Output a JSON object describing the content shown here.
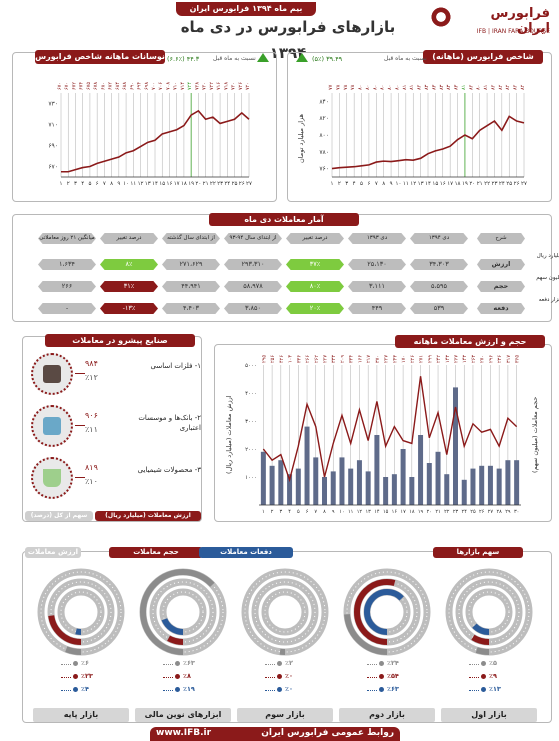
{
  "header": {
    "badge": "بیم ماه ۱۳۹۴ فرابورس ایران",
    "title": "بازارهای فرابورس در دی ماه ۱۳۹۴",
    "logo_fa": "فرابورس ایران",
    "logo_en": "IFB | IRAN FARA BOURSE"
  },
  "index_chart": {
    "title": "شاخص فرابورس (ماهانه)",
    "change_label": "نسبت به ماه قبل",
    "change_value": "۳۹.۴۹ (۵٪)",
    "ylabel": "هزار میلیارد تومان",
    "tick_labels": [
      "۷۶۰",
      "۷۸۰",
      "۸۰۰",
      "۸۲۰",
      "۸۴۰"
    ],
    "ylim": [
      7600,
      8500
    ],
    "top_labels": [
      "۷۷",
      "۷۸",
      "۷۸",
      "۷۸",
      "۸۰",
      "۸۰",
      "۸۰",
      "۸۰",
      "۸۰",
      "۸۰",
      "۸۱",
      "۸۱",
      "۸۲",
      "۸۳",
      "۸۳",
      "۸۳",
      "۸۳",
      "۸۳",
      "۸۱",
      "۸۲",
      "۸۰",
      "۸۱",
      "۸۲",
      "۸۲",
      "۸۲",
      "۸۲",
      "۸۲"
    ],
    "x_labels": [
      "۱",
      "۲",
      "۳",
      "۴",
      "۵",
      "۶",
      "۷",
      "۸",
      "۹",
      "۱۰",
      "۱۱",
      "۱۲",
      "۱۳",
      "۱۴",
      "۱۵",
      "۱۶",
      "۱۷",
      "۱۸",
      "۱۹",
      "۲۰",
      "۲۱",
      "۲۲",
      "۲۳",
      "۲۴",
      "۲۵",
      "۲۶",
      "۲۷"
    ],
    "values": [
      7690,
      7700,
      7705,
      7710,
      7720,
      7730,
      7760,
      7770,
      7765,
      7775,
      7785,
      7780,
      7800,
      7850,
      7880,
      7900,
      7930,
      8000,
      8050,
      8010,
      8100,
      8150,
      8200,
      8100,
      8250,
      8200,
      8180
    ]
  },
  "cap_chart": {
    "title": "نوسانات ماهانه شاخص فرابورس",
    "change_label": "نسبت به ماه قبل",
    "change_value": "۴۴.۳ (۶.۶٪)",
    "ylabel": "",
    "tick_labels": [
      "۶۷۰",
      "۶۹۰",
      "۷۱۰",
      "۷۳۰"
    ],
    "ylim": [
      665,
      745
    ],
    "top_labels": [
      "۶۷۰",
      "۶۷۰",
      "۶۷۲",
      "۶۷۴",
      "۶۷۵",
      "۶۷۸",
      "۶۸۰",
      "۶۸۲",
      "۶۸۴",
      "۶۸۸",
      "۶۹۰",
      "۶۹۴",
      "۶۹۸",
      "۷۰۰",
      "۷۰۶",
      "۷۰۸",
      "۷۱۰",
      "۷۱۴",
      "۷۲۴",
      "۷۲۸",
      "۷۲۰",
      "۷۲۲",
      "۷۱۶",
      "۷۱۸",
      "۷۲۰",
      "۷۲۶",
      "۷۲۰"
    ],
    "x_labels": [
      "۱",
      "۲",
      "۳",
      "۴",
      "۵",
      "۶",
      "۷",
      "۸",
      "۹",
      "۱۰",
      "۱۱",
      "۱۲",
      "۱۳",
      "۱۴",
      "۱۵",
      "۱۶",
      "۱۷",
      "۱۸",
      "۱۹",
      "۲۰",
      "۲۱",
      "۲۲",
      "۲۳",
      "۲۴",
      "۲۵",
      "۲۶",
      "۲۷"
    ],
    "values": [
      670,
      670,
      672,
      674,
      675,
      678,
      680,
      682,
      684,
      688,
      690,
      694,
      698,
      700,
      706,
      708,
      710,
      714,
      724,
      728,
      720,
      722,
      716,
      718,
      720,
      726,
      720
    ]
  },
  "stats": {
    "title": "آمار معاملات دی ماه",
    "headers": [
      "شرح",
      "دی ۱۳۹۴",
      "دی ۱۳۹۳",
      "درصد تغییر",
      "از ابتدای سال ۹۴-۹۳",
      "از ابتدای سال گذشته",
      "درصد تغییر",
      "میانگین ۲۱ روز معاملاتی"
    ],
    "rows": [
      {
        "label": "ارزش",
        "unit": "میلیارد ریال",
        "cells": [
          "۳۴،۳۰۳",
          "۲۵،۱۳۰",
          "۳۷٪",
          "۲۹۳،۳۱۰",
          "۲۷۱،۶۲۹",
          "۸٪",
          "۱،۶۳۴"
        ],
        "tones": [
          "gry",
          "gry",
          "grn",
          "gry",
          "gry",
          "grn",
          "gry"
        ]
      },
      {
        "label": "حجم",
        "unit": "میلیون سهم",
        "cells": [
          "۵،۵۹۵",
          "۳،۱۱۱",
          "۸۰٪",
          "۵۸،۹۷۸",
          "۴۴،۹۴۱",
          "۳۱٪",
          "۲۶۶"
        ],
        "tones": [
          "gry",
          "gry",
          "grn",
          "gry",
          "gry",
          "red",
          "gry"
        ]
      },
      {
        "label": "دفعه",
        "unit": "هزار دفعه",
        "cells": [
          "۵۳۹",
          "۴۴۹",
          "۲۰٪",
          "۳،۸۵۰",
          "۴،۴۰۳",
          "-۱۳٪",
          "-"
        ],
        "tones": [
          "gry",
          "gry",
          "grn",
          "gry",
          "gry",
          "red",
          "gry"
        ]
      }
    ]
  },
  "industries": {
    "title": "صنایع پیشرو در معاملات",
    "footer_tags": [
      "ارزش معاملات (میلیارد ریال)",
      "سهم از کل (درصد)"
    ],
    "items": [
      {
        "name": "۱- فلزات اساسی",
        "value": "۹۸۴",
        "share": "٪۱۲"
      },
      {
        "name": "۲- بانک‌ها و موسسات اعتباری",
        "value": "۹۰۶",
        "share": "٪۱۱"
      },
      {
        "name": "۳- محصولات شیمیایی",
        "value": "۸۱۹",
        "share": "٪۱۰"
      }
    ]
  },
  "daily_chart": {
    "title": "حجم و ارزش معاملات ماهانه فرابورس",
    "left_axis": "ارزش معاملات (میلیارد ریال)",
    "right_axis": "حجم معاملات (میلیون سهم)",
    "left_ticks": [
      "۱۰۰۰",
      "۲۰۰۰",
      "۳۰۰۰",
      "۴۰۰۰",
      "۵۰۰۰"
    ],
    "x_labels": [
      "۱",
      "۲",
      "۳",
      "۴",
      "۵",
      "۶",
      "۷",
      "۸",
      "۹",
      "۱۰",
      "۱۱",
      "۱۲",
      "۱۳",
      "۱۴",
      "۱۵",
      "۱۶",
      "۱۷",
      "۱۸",
      "۱۹",
      "۲۰",
      "۲۱",
      "۲۲",
      "۲۳",
      "۲۴",
      "۲۵",
      "۲۶",
      "۲۷",
      "۲۸",
      "۲۹",
      "۳۰"
    ],
    "top_labels": [
      "۲۹۵",
      "۲۵۶",
      "۴۲۶",
      "۱۰۳",
      "۳۳۶",
      "۲۶۶",
      "۲۶۲",
      "۲۲۷",
      "۳۳۳",
      "۲۰۹",
      "۳۳۴",
      "۱۶۶",
      "۲۱۷",
      "۳۷۰",
      "۲۲۷",
      "۲۴۳",
      "۱۷۰",
      "۲۲۶",
      "۲۷۱",
      "۲۹۹",
      "۲۴۲",
      "۱۴۳",
      "۲۶۷",
      "۱۴۳",
      "۲۶۳",
      "۲۷۰",
      "۲۹۶",
      "۲۳۶",
      "۳۱۷",
      "۳۶۵"
    ],
    "bars": [
      1900,
      1400,
      1600,
      1100,
      1300,
      2800,
      1700,
      1000,
      1200,
      1700,
      1300,
      1600,
      1200,
      2500,
      1000,
      1100,
      2000,
      1000,
      2500,
      1500,
      1900,
      1100,
      4200,
      900,
      1300,
      1400,
      1400,
      1300,
      1600,
      1600
    ],
    "line": [
      2000,
      1600,
      1800,
      900,
      2100,
      3600,
      2800,
      1000,
      2200,
      3200,
      2200,
      3400,
      2300,
      3700,
      2100,
      2800,
      2300,
      2200,
      4600,
      2400,
      3300,
      1800,
      3500,
      2100,
      2900,
      2600,
      2700,
      2100,
      3100,
      2800
    ],
    "ylim": [
      0,
      5000
    ]
  },
  "markets": {
    "legend_tags": [
      "ارزش معاملات",
      "حجم معاملات",
      "دفعات معاملات",
      "سهم بازارها"
    ],
    "items": [
      {
        "name": "بازار پایه",
        "stats": [
          "٪۶",
          "٪۲۳",
          "٪۴"
        ],
        "values": [
          0.06,
          0.23,
          0.04
        ]
      },
      {
        "name": "ابزارهای نوین مالی",
        "stats": [
          "٪۶۳",
          "٪۸",
          "٪۱۹"
        ],
        "values": [
          0.63,
          0.08,
          0.19
        ]
      },
      {
        "name": "بازار سوم",
        "stats": [
          "٪۲",
          "٪۰",
          "٪۰"
        ],
        "values": [
          0.02,
          0.0,
          0.0
        ]
      },
      {
        "name": "بازار دوم",
        "stats": [
          "٪۲۴",
          "٪۵۴",
          "٪۶۳"
        ],
        "values": [
          0.24,
          0.54,
          0.63
        ]
      },
      {
        "name": "بازار اول",
        "stats": [
          "٪۵",
          "٪۹",
          "٪۱۳"
        ],
        "values": [
          0.05,
          0.09,
          0.13
        ]
      }
    ]
  },
  "footer": {
    "url": "www.IFB.ir",
    "text": "روابط عمومی فرابورس ایران"
  },
  "colors": {
    "accent": "#8b1a1a",
    "blue": "#2b5b9a",
    "grey": "#bdbdbd",
    "green": "#7ecb3f"
  }
}
